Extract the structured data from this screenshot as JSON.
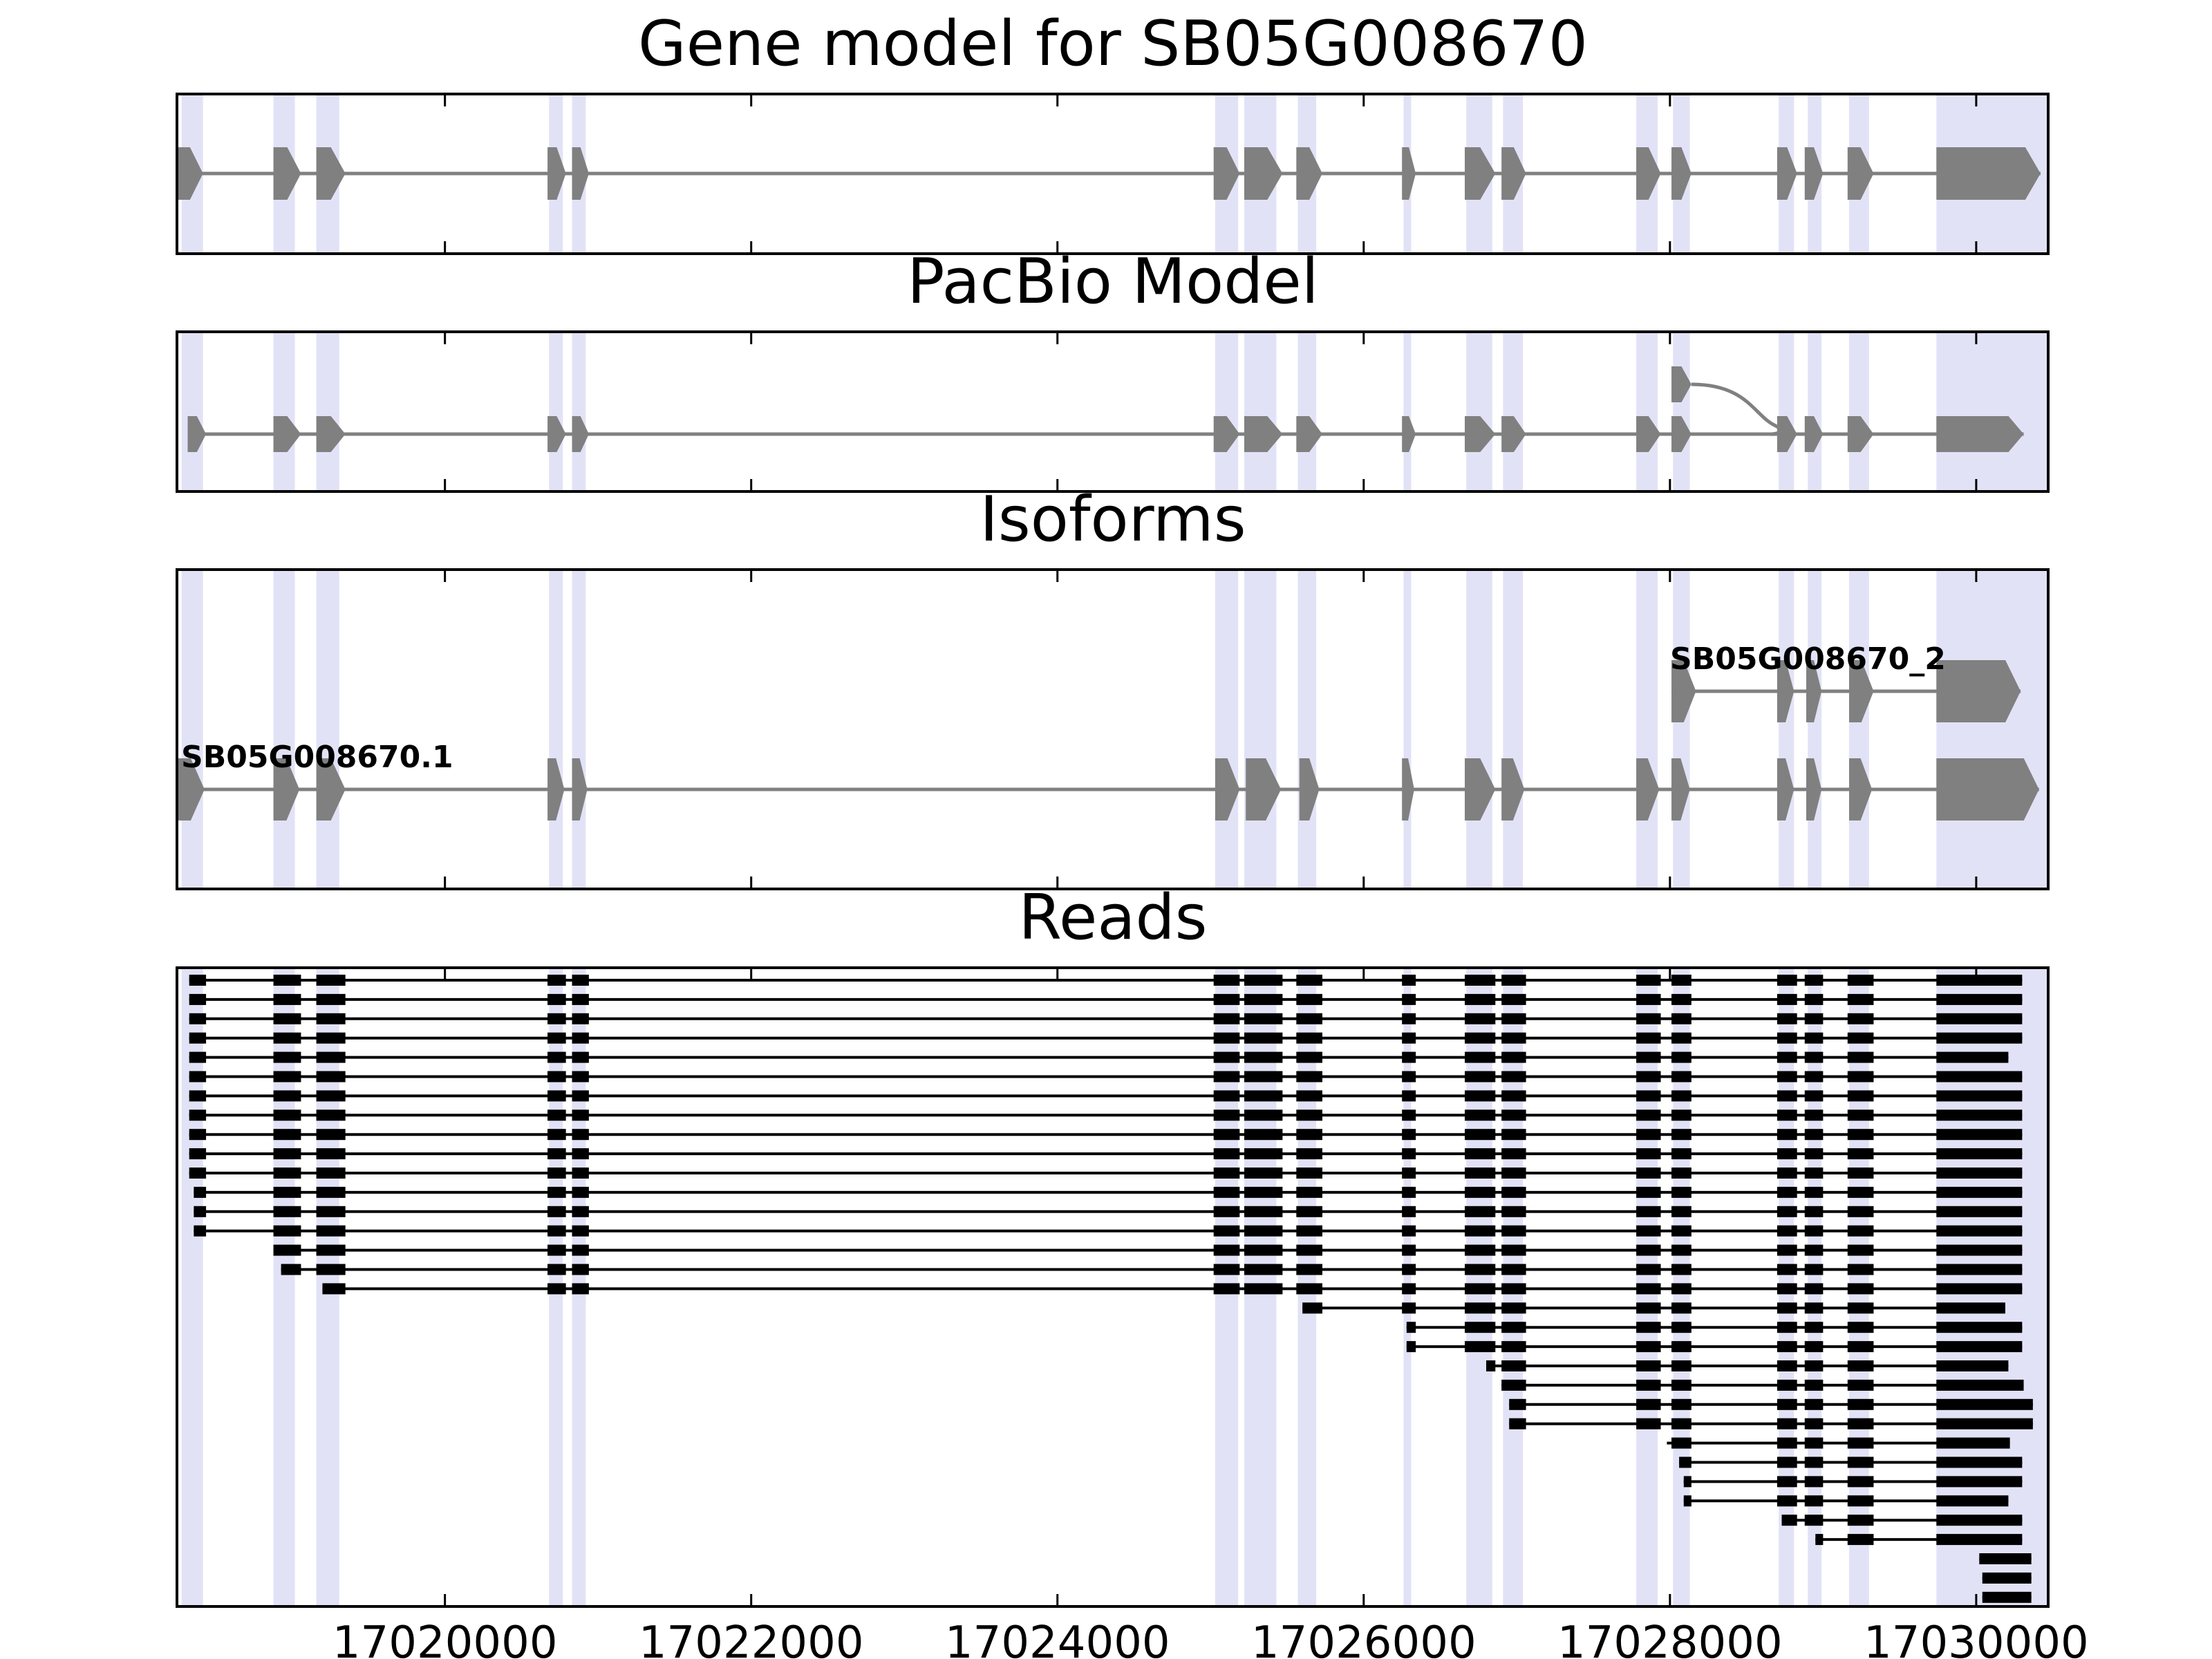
{
  "figure": {
    "panels": [
      {
        "key": "gene_model",
        "title": "Gene model for SB05G008670"
      },
      {
        "key": "pacbio_model",
        "title": "PacBio Model"
      },
      {
        "key": "isoforms",
        "title": "Isoforms"
      },
      {
        "key": "reads",
        "title": "Reads"
      }
    ],
    "x_ticks": [
      {
        "value": 17020000,
        "label": "17020000"
      },
      {
        "value": 17022000,
        "label": "17022000"
      },
      {
        "value": 17024000,
        "label": "17024000"
      },
      {
        "value": 17026000,
        "label": "17026000"
      },
      {
        "value": 17028000,
        "label": "17028000"
      },
      {
        "value": 17030000,
        "label": "17030000"
      }
    ],
    "xlim": [
      17018250,
      17030470
    ],
    "colors": {
      "exon": "#808080",
      "intron": "#808080",
      "highlight": "#e2e2f7",
      "read": "#000000",
      "frame": "#000000",
      "background": "#ffffff"
    }
  },
  "chart_data": {
    "type": "gene-structure",
    "title": "Gene model for SB05G008670",
    "xlabel": "",
    "ylabel": "",
    "xlim": [
      17018250,
      17030470
    ],
    "highlight_regions": [
      [
        17018280,
        17018420
      ],
      [
        17018880,
        17019020
      ],
      [
        17019160,
        17019310
      ],
      [
        17020680,
        17020770
      ],
      [
        17020830,
        17020920
      ],
      [
        17025030,
        17025180
      ],
      [
        17025220,
        17025430
      ],
      [
        17025570,
        17025690
      ],
      [
        17026260,
        17026310
      ],
      [
        17026670,
        17026840
      ],
      [
        17026910,
        17027040
      ],
      [
        17027780,
        17027920
      ],
      [
        17028020,
        17028130
      ],
      [
        17028710,
        17028810
      ],
      [
        17028900,
        17028990
      ],
      [
        17029170,
        17029300
      ],
      [
        17029740,
        17030470
      ]
    ],
    "gene_model": {
      "strand": "+",
      "exons": [
        [
          17018250,
          17018420
        ],
        [
          17018880,
          17019060
        ],
        [
          17019160,
          17019350
        ],
        [
          17020670,
          17020790
        ],
        [
          17020830,
          17020940
        ],
        [
          17025020,
          17025190
        ],
        [
          17025220,
          17025470
        ],
        [
          17025560,
          17025730
        ],
        [
          17026250,
          17026340
        ],
        [
          17026660,
          17026860
        ],
        [
          17026900,
          17027060
        ],
        [
          17027780,
          17027940
        ],
        [
          17028010,
          17028140
        ],
        [
          17028700,
          17028830
        ],
        [
          17028880,
          17029000
        ],
        [
          17029160,
          17029330
        ],
        [
          17029740,
          17030420
        ]
      ]
    },
    "pacbio_model": {
      "strand": "+",
      "main_exons": [
        [
          17018320,
          17018440
        ],
        [
          17018880,
          17019060
        ],
        [
          17019160,
          17019350
        ],
        [
          17020670,
          17020790
        ],
        [
          17020830,
          17020940
        ],
        [
          17025020,
          17025190
        ],
        [
          17025220,
          17025470
        ],
        [
          17025560,
          17025730
        ],
        [
          17026250,
          17026340
        ],
        [
          17026660,
          17026860
        ],
        [
          17026900,
          17027060
        ],
        [
          17027780,
          17027940
        ],
        [
          17028010,
          17028140
        ],
        [
          17028700,
          17028830
        ],
        [
          17028880,
          17029000
        ],
        [
          17029160,
          17029330
        ],
        [
          17029740,
          17030310
        ]
      ],
      "alternative_start_exon": [
        17028010,
        17028140
      ],
      "alternative_joins_at": 17028700
    },
    "isoforms": [
      {
        "name": "SB05G008670.1",
        "exons": [
          [
            17018250,
            17018430
          ],
          [
            17018880,
            17019050
          ],
          [
            17019160,
            17019350
          ],
          [
            17020670,
            17020780
          ],
          [
            17020830,
            17020930
          ],
          [
            17025030,
            17025190
          ],
          [
            17025230,
            17025460
          ],
          [
            17025580,
            17025710
          ],
          [
            17026250,
            17026330
          ],
          [
            17026660,
            17026860
          ],
          [
            17026900,
            17027050
          ],
          [
            17027780,
            17027930
          ],
          [
            17028010,
            17028130
          ],
          [
            17028700,
            17028810
          ],
          [
            17028890,
            17028990
          ],
          [
            17029170,
            17029320
          ],
          [
            17029740,
            17030410
          ]
        ]
      },
      {
        "name": "SB05G008670_2",
        "exons": [
          [
            17028010,
            17028170
          ],
          [
            17028700,
            17028810
          ],
          [
            17028890,
            17028990
          ],
          [
            17029170,
            17029330
          ],
          [
            17029740,
            17030290
          ]
        ]
      }
    ],
    "reads": [
      {
        "start": 17018330,
        "end": 17030300
      },
      {
        "start": 17018330,
        "end": 17030300
      },
      {
        "start": 17018330,
        "end": 17030300
      },
      {
        "start": 17018330,
        "end": 17030300
      },
      {
        "start": 17018330,
        "end": 17030210
      },
      {
        "start": 17018330,
        "end": 17030300
      },
      {
        "start": 17018330,
        "end": 17030300
      },
      {
        "start": 17018330,
        "end": 17030300
      },
      {
        "start": 17018330,
        "end": 17030300
      },
      {
        "start": 17018330,
        "end": 17030300
      },
      {
        "start": 17018330,
        "end": 17030300
      },
      {
        "start": 17018360,
        "end": 17030300
      },
      {
        "start": 17018360,
        "end": 17030300
      },
      {
        "start": 17018360,
        "end": 17030300
      },
      {
        "start": 17018880,
        "end": 17030300
      },
      {
        "start": 17018930,
        "end": 17030300
      },
      {
        "start": 17019200,
        "end": 17030300
      },
      {
        "start": 17025600,
        "end": 17030190
      },
      {
        "start": 17026280,
        "end": 17030300
      },
      {
        "start": 17026280,
        "end": 17030300
      },
      {
        "start": 17026800,
        "end": 17030210
      },
      {
        "start": 17026900,
        "end": 17030310
      },
      {
        "start": 17026950,
        "end": 17030370
      },
      {
        "start": 17026950,
        "end": 17030370
      },
      {
        "start": 17027980,
        "end": 17030220
      },
      {
        "start": 17028060,
        "end": 17030300
      },
      {
        "start": 17028090,
        "end": 17030300
      },
      {
        "start": 17028090,
        "end": 17030210
      },
      {
        "start": 17028730,
        "end": 17030300
      },
      {
        "start": 17028950,
        "end": 17030300
      },
      {
        "start": 17030020,
        "end": 17030360
      },
      {
        "start": 17030040,
        "end": 17030360
      },
      {
        "start": 17030040,
        "end": 17030360
      }
    ]
  }
}
